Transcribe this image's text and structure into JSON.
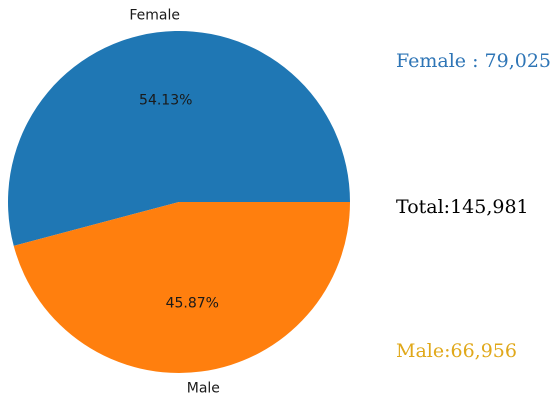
{
  "chart_data": {
    "type": "pie",
    "categories": [
      "Female",
      "Male"
    ],
    "values": [
      54.13,
      45.87
    ],
    "pct_labels": [
      "54.13%",
      "45.87%"
    ],
    "colors": [
      "#1f77b4",
      "#ff7f0e"
    ],
    "start_angle_deg": 0
  },
  "annotations": {
    "female_total": "Female : 79,025",
    "total": "Total:145,981",
    "male_total": "Male:66,956"
  },
  "annotation_colors": {
    "female": "#2e75b6",
    "total": "#000000",
    "male": "#e0a81a"
  }
}
